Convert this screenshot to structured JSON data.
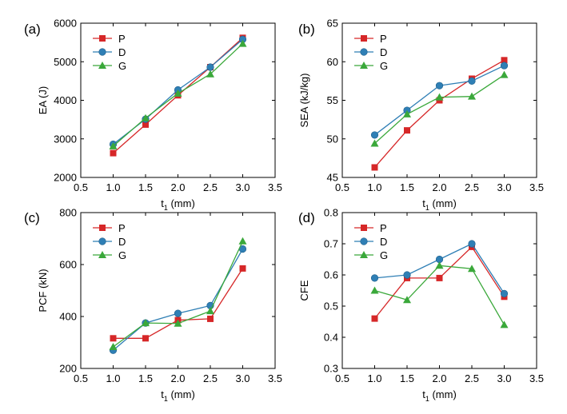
{
  "colors": {
    "P": "#d62728",
    "D": "#2f7fb5",
    "G": "#3aa83a",
    "axis": "#000000"
  },
  "chart_data": [
    {
      "type": "line",
      "panel_label": "(a)",
      "xlabel": "t",
      "xlabel_sub": "1",
      "xlabel_unit": " (mm)",
      "ylabel": "EA (J)",
      "xlim": [
        0.5,
        3.5
      ],
      "ylim": [
        2000,
        6000
      ],
      "xticks": [
        "0.5",
        "1.0",
        "1.5",
        "2.0",
        "2.5",
        "3.0",
        "3.5"
      ],
      "yticks": [
        "2000",
        "3000",
        "4000",
        "5000",
        "6000"
      ],
      "x": [
        1.0,
        1.5,
        2.0,
        2.5,
        3.0
      ],
      "legend_position": "top-left",
      "series": [
        {
          "name": "P",
          "marker": "square",
          "values": [
            2630,
            3370,
            4130,
            4860,
            5620
          ]
        },
        {
          "name": "D",
          "marker": "circle",
          "values": [
            2860,
            3510,
            4270,
            4860,
            5580
          ]
        },
        {
          "name": "G",
          "marker": "triangle",
          "values": [
            2810,
            3540,
            4180,
            4680,
            5470
          ]
        }
      ]
    },
    {
      "type": "line",
      "panel_label": "(b)",
      "xlabel": "t",
      "xlabel_sub": "1",
      "xlabel_unit": " (mm)",
      "ylabel": "SEA (kJ/kg)",
      "xlim": [
        0.5,
        3.5
      ],
      "ylim": [
        45,
        65
      ],
      "xticks": [
        "0.5",
        "1.0",
        "1.5",
        "2.0",
        "2.5",
        "3.0",
        "3.5"
      ],
      "yticks": [
        "45",
        "50",
        "55",
        "60",
        "65"
      ],
      "x": [
        1.0,
        1.5,
        2.0,
        2.5,
        3.0
      ],
      "legend_position": "top-left",
      "series": [
        {
          "name": "P",
          "marker": "square",
          "values": [
            46.3,
            51.1,
            55.0,
            57.8,
            60.2
          ]
        },
        {
          "name": "D",
          "marker": "circle",
          "values": [
            50.5,
            53.7,
            56.9,
            57.5,
            59.5
          ]
        },
        {
          "name": "G",
          "marker": "triangle",
          "values": [
            49.4,
            53.2,
            55.4,
            55.5,
            58.3
          ]
        }
      ]
    },
    {
      "type": "line",
      "panel_label": "(c)",
      "xlabel": "t",
      "xlabel_sub": "1",
      "xlabel_unit": " (mm)",
      "ylabel": "PCF (kN)",
      "xlim": [
        0.5,
        3.5
      ],
      "ylim": [
        200,
        800
      ],
      "xticks": [
        "0.5",
        "1.0",
        "1.5",
        "2.0",
        "2.5",
        "3.0",
        "3.5"
      ],
      "yticks": [
        "200",
        "400",
        "600",
        "800"
      ],
      "x": [
        1.0,
        1.5,
        2.0,
        2.5,
        3.0
      ],
      "legend_position": "top-left",
      "series": [
        {
          "name": "P",
          "marker": "square",
          "values": [
            316,
            316,
            386,
            391,
            585
          ]
        },
        {
          "name": "D",
          "marker": "circle",
          "values": [
            270,
            375,
            412,
            442,
            660
          ]
        },
        {
          "name": "G",
          "marker": "triangle",
          "values": [
            283,
            375,
            373,
            421,
            690
          ]
        }
      ]
    },
    {
      "type": "line",
      "panel_label": "(d)",
      "xlabel": "t",
      "xlabel_sub": "1",
      "xlabel_unit": " (mm)",
      "ylabel": "CFE",
      "xlim": [
        0.5,
        3.5
      ],
      "ylim": [
        0.3,
        0.8
      ],
      "xticks": [
        "0.5",
        "1.0",
        "1.5",
        "2.0",
        "2.5",
        "3.0",
        "3.5"
      ],
      "yticks": [
        "0.3",
        "0.4",
        "0.5",
        "0.6",
        "0.7",
        "0.8"
      ],
      "x": [
        1.0,
        1.5,
        2.0,
        2.5,
        3.0
      ],
      "legend_position": "top-left",
      "series": [
        {
          "name": "P",
          "marker": "square",
          "values": [
            0.46,
            0.59,
            0.59,
            0.69,
            0.53
          ]
        },
        {
          "name": "D",
          "marker": "circle",
          "values": [
            0.59,
            0.6,
            0.65,
            0.7,
            0.54
          ]
        },
        {
          "name": "G",
          "marker": "triangle",
          "values": [
            0.55,
            0.52,
            0.63,
            0.62,
            0.44
          ]
        }
      ]
    }
  ]
}
